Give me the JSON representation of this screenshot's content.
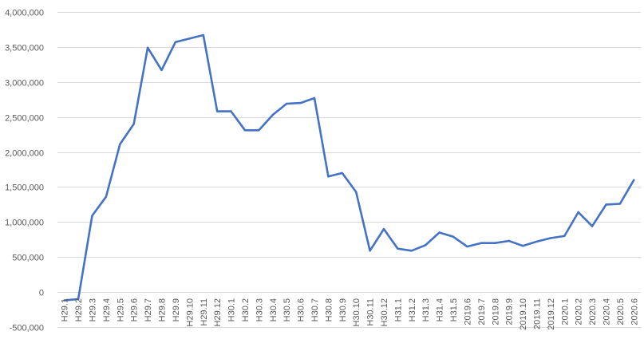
{
  "chart_data": {
    "type": "line",
    "categories": [
      "H29.1",
      "H29.2",
      "H29.3",
      "H29.4",
      "H29.5",
      "H29.6",
      "H29.7",
      "H29.8",
      "H29.9",
      "H29.10",
      "H29.11",
      "H29.12",
      "H30.1",
      "H30.2",
      "H30.3",
      "H30.4",
      "H30.5",
      "H30.6",
      "H30.7",
      "H30.8",
      "H30.9",
      "H30.10",
      "H30.11",
      "H30.12",
      "H31.1",
      "H31.2",
      "H31.3",
      "H31.4",
      "H31.5",
      "2019.6",
      "2019.7",
      "2019.8",
      "2019.9",
      "2019.10",
      "2019.11",
      "2019.12",
      "2020.1",
      "2020.2",
      "2020.3",
      "2020.4",
      "2020.5",
      "2020.6"
    ],
    "series": [
      {
        "values": [
          -120000,
          -100000,
          1090000,
          1360000,
          2110000,
          2400000,
          3490000,
          3170000,
          3570000,
          3620000,
          3670000,
          2580000,
          2580000,
          2310000,
          2310000,
          2530000,
          2690000,
          2700000,
          2770000,
          1650000,
          1700000,
          1430000,
          590000,
          900000,
          620000,
          590000,
          670000,
          850000,
          790000,
          650000,
          700000,
          700000,
          730000,
          660000,
          720000,
          770000,
          800000,
          1140000,
          940000,
          1250000,
          1260000,
          1600000
        ],
        "color": "#4472c4"
      }
    ],
    "ylim": [
      -500000,
      4000000
    ],
    "yticks": [
      -500000,
      0,
      500000,
      1000000,
      1500000,
      2000000,
      2500000,
      3000000,
      3500000,
      4000000
    ],
    "ytick_labels": [
      "-500,000",
      "0",
      "500,000",
      "1,000,000",
      "1,500,000",
      "2,000,000",
      "2,500,000",
      "3,000,000",
      "3,500,000",
      "4,000,000"
    ],
    "negative_label_color": "#c00000",
    "grid": true,
    "title": "",
    "xlabel": "",
    "ylabel": ""
  }
}
